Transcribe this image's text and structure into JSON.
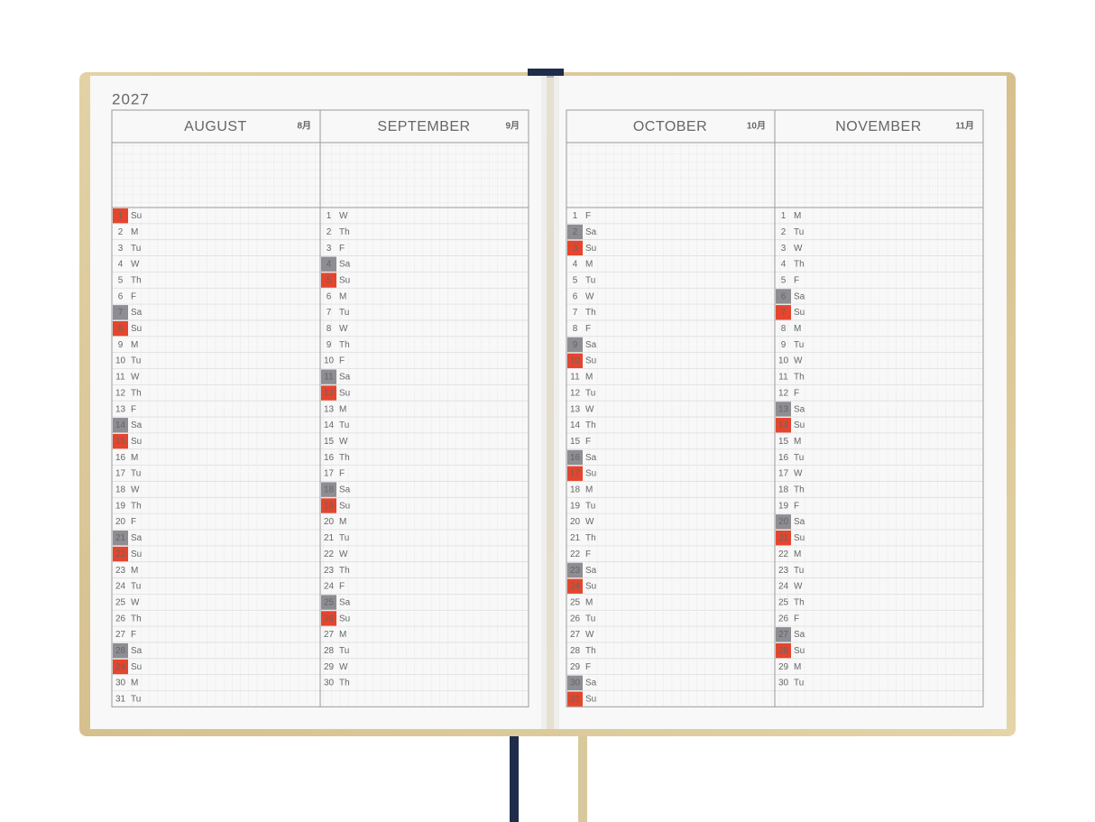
{
  "year": "2027",
  "day_colors": {
    "Sa": "#8e8d93",
    "Su": "#e5452d"
  },
  "months": [
    {
      "name": "AUGUST",
      "label": "8月",
      "days": [
        [
          1,
          "Su"
        ],
        [
          2,
          "M"
        ],
        [
          3,
          "Tu"
        ],
        [
          4,
          "W"
        ],
        [
          5,
          "Th"
        ],
        [
          6,
          "F"
        ],
        [
          7,
          "Sa"
        ],
        [
          8,
          "Su"
        ],
        [
          9,
          "M"
        ],
        [
          10,
          "Tu"
        ],
        [
          11,
          "W"
        ],
        [
          12,
          "Th"
        ],
        [
          13,
          "F"
        ],
        [
          14,
          "Sa"
        ],
        [
          15,
          "Su"
        ],
        [
          16,
          "M"
        ],
        [
          17,
          "Tu"
        ],
        [
          18,
          "W"
        ],
        [
          19,
          "Th"
        ],
        [
          20,
          "F"
        ],
        [
          21,
          "Sa"
        ],
        [
          22,
          "Su"
        ],
        [
          23,
          "M"
        ],
        [
          24,
          "Tu"
        ],
        [
          25,
          "W"
        ],
        [
          26,
          "Th"
        ],
        [
          27,
          "F"
        ],
        [
          28,
          "Sa"
        ],
        [
          29,
          "Su"
        ],
        [
          30,
          "M"
        ],
        [
          31,
          "Tu"
        ]
      ]
    },
    {
      "name": "SEPTEMBER",
      "label": "9月",
      "days": [
        [
          1,
          "W"
        ],
        [
          2,
          "Th"
        ],
        [
          3,
          "F"
        ],
        [
          4,
          "Sa"
        ],
        [
          5,
          "Su"
        ],
        [
          6,
          "M"
        ],
        [
          7,
          "Tu"
        ],
        [
          8,
          "W"
        ],
        [
          9,
          "Th"
        ],
        [
          10,
          "F"
        ],
        [
          11,
          "Sa"
        ],
        [
          12,
          "Su"
        ],
        [
          13,
          "M"
        ],
        [
          14,
          "Tu"
        ],
        [
          15,
          "W"
        ],
        [
          16,
          "Th"
        ],
        [
          17,
          "F"
        ],
        [
          18,
          "Sa"
        ],
        [
          19,
          "Su"
        ],
        [
          20,
          "M"
        ],
        [
          21,
          "Tu"
        ],
        [
          22,
          "W"
        ],
        [
          23,
          "Th"
        ],
        [
          24,
          "F"
        ],
        [
          25,
          "Sa"
        ],
        [
          26,
          "Su"
        ],
        [
          27,
          "M"
        ],
        [
          28,
          "Tu"
        ],
        [
          29,
          "W"
        ],
        [
          30,
          "Th"
        ]
      ]
    },
    {
      "name": "OCTOBER",
      "label": "10月",
      "days": [
        [
          1,
          "F"
        ],
        [
          2,
          "Sa"
        ],
        [
          3,
          "Su"
        ],
        [
          4,
          "M"
        ],
        [
          5,
          "Tu"
        ],
        [
          6,
          "W"
        ],
        [
          7,
          "Th"
        ],
        [
          8,
          "F"
        ],
        [
          9,
          "Sa"
        ],
        [
          10,
          "Su"
        ],
        [
          11,
          "M"
        ],
        [
          12,
          "Tu"
        ],
        [
          13,
          "W"
        ],
        [
          14,
          "Th"
        ],
        [
          15,
          "F"
        ],
        [
          16,
          "Sa"
        ],
        [
          17,
          "Su"
        ],
        [
          18,
          "M"
        ],
        [
          19,
          "Tu"
        ],
        [
          20,
          "W"
        ],
        [
          21,
          "Th"
        ],
        [
          22,
          "F"
        ],
        [
          23,
          "Sa"
        ],
        [
          24,
          "Su"
        ],
        [
          25,
          "M"
        ],
        [
          26,
          "Tu"
        ],
        [
          27,
          "W"
        ],
        [
          28,
          "Th"
        ],
        [
          29,
          "F"
        ],
        [
          30,
          "Sa"
        ],
        [
          31,
          "Su"
        ]
      ]
    },
    {
      "name": "NOVEMBER",
      "label": "11月",
      "days": [
        [
          1,
          "M"
        ],
        [
          2,
          "Tu"
        ],
        [
          3,
          "W"
        ],
        [
          4,
          "Th"
        ],
        [
          5,
          "F"
        ],
        [
          6,
          "Sa"
        ],
        [
          7,
          "Su"
        ],
        [
          8,
          "M"
        ],
        [
          9,
          "Tu"
        ],
        [
          10,
          "W"
        ],
        [
          11,
          "Th"
        ],
        [
          12,
          "F"
        ],
        [
          13,
          "Sa"
        ],
        [
          14,
          "Su"
        ],
        [
          15,
          "M"
        ],
        [
          16,
          "Tu"
        ],
        [
          17,
          "W"
        ],
        [
          18,
          "Th"
        ],
        [
          19,
          "F"
        ],
        [
          20,
          "Sa"
        ],
        [
          21,
          "Su"
        ],
        [
          22,
          "M"
        ],
        [
          23,
          "Tu"
        ],
        [
          24,
          "W"
        ],
        [
          25,
          "Th"
        ],
        [
          26,
          "F"
        ],
        [
          27,
          "Sa"
        ],
        [
          28,
          "Su"
        ],
        [
          29,
          "M"
        ],
        [
          30,
          "Tu"
        ]
      ]
    }
  ]
}
